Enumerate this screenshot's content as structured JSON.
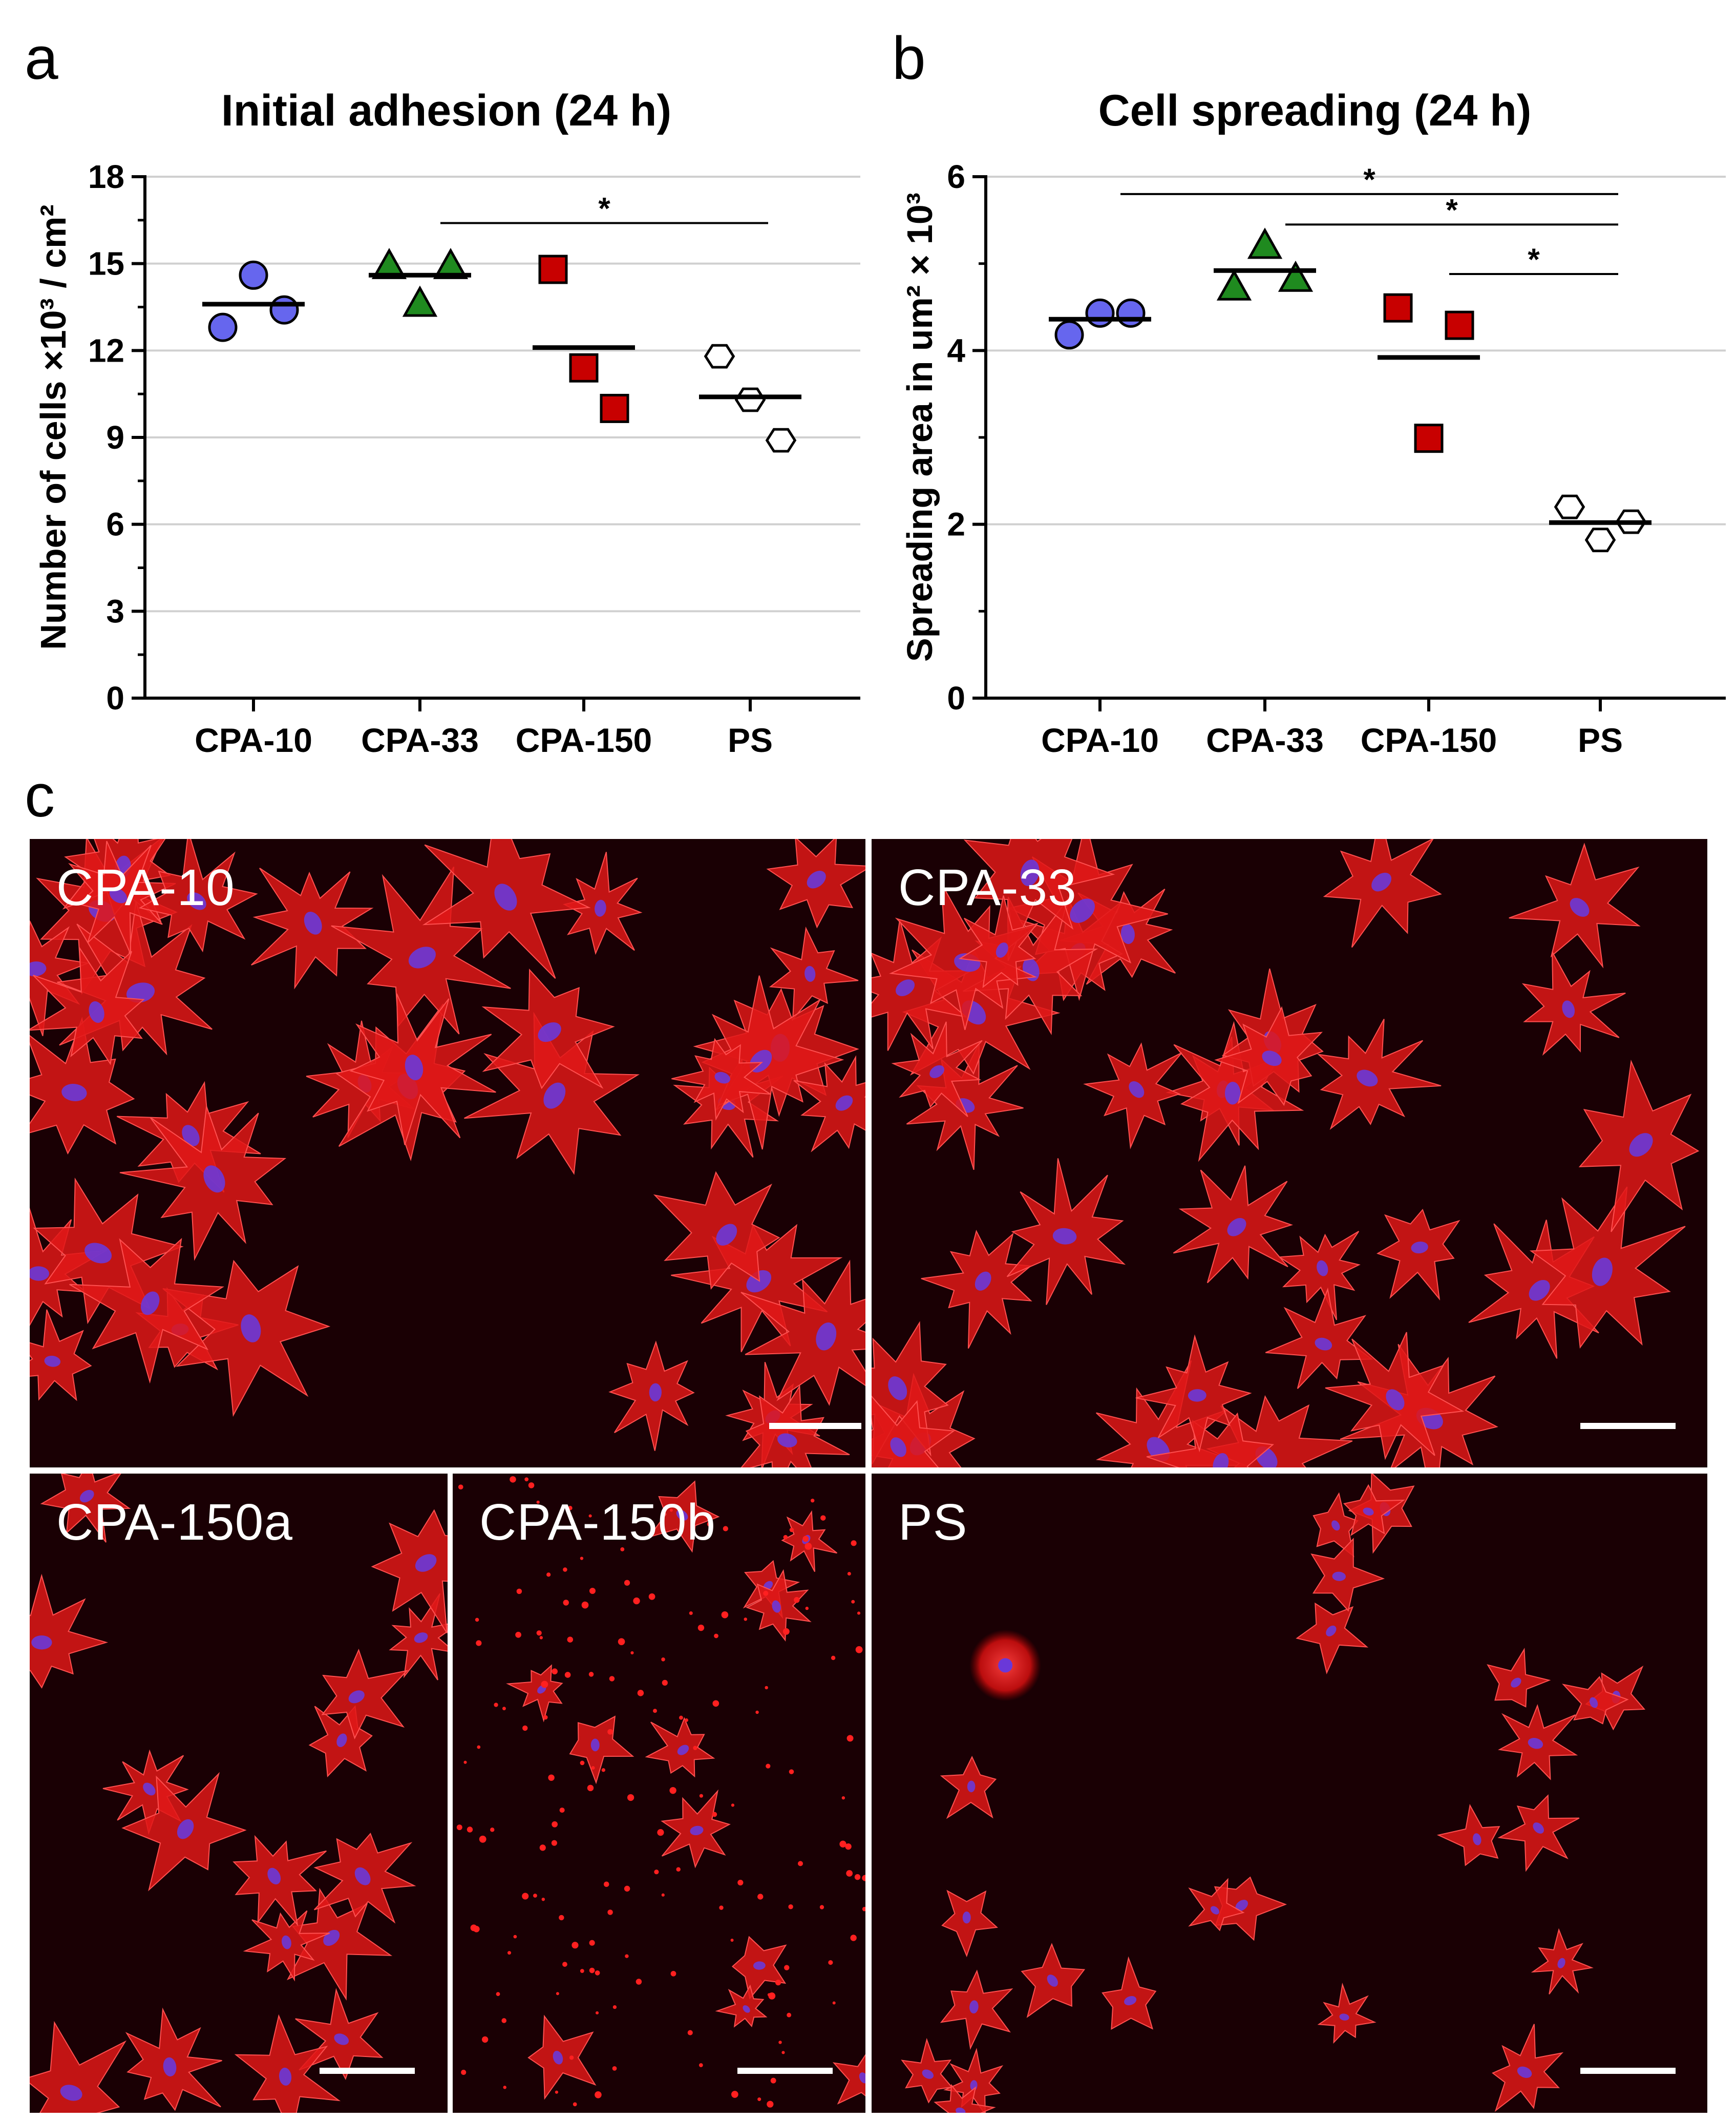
{
  "panel_letters": {
    "a": "a",
    "b": "b",
    "c": "c"
  },
  "colors": {
    "CPA-10": "#6666ee",
    "CPA-33": "#1f8a1f",
    "CPA-150": "#c80000",
    "PS": "#ffffff",
    "grid": "#d0d0d0",
    "actin": "#e01818",
    "nucleus": "#6a38d8",
    "background": "#1a0004"
  },
  "chart_data": [
    {
      "type": "scatter",
      "title": "Initial adhesion (24 h)",
      "ylabel": "Number of cells ×10³ / cm²",
      "xlabel": "",
      "categories": [
        "CPA-10",
        "CPA-33",
        "CPA-150",
        "PS"
      ],
      "ylim": [
        0,
        18
      ],
      "yticks": [
        "0",
        "3",
        "6",
        "9",
        "12",
        "15",
        "18"
      ],
      "grid": true,
      "series": [
        {
          "name": "CPA-10",
          "marker": "circle",
          "values": [
            12.8,
            14.6,
            13.4
          ],
          "mean": 13.6
        },
        {
          "name": "CPA-33",
          "marker": "triangle",
          "values": [
            14.9,
            13.6,
            14.9
          ],
          "mean": 14.6
        },
        {
          "name": "CPA-150",
          "marker": "square",
          "values": [
            14.8,
            11.4,
            10.0
          ],
          "mean": 12.1
        },
        {
          "name": "PS",
          "marker": "hexagon",
          "values": [
            11.8,
            10.3,
            8.9
          ],
          "mean": 10.4
        }
      ],
      "significance": [
        {
          "from": "CPA-33",
          "to": "PS",
          "level": 16.4,
          "label": "*"
        }
      ]
    },
    {
      "type": "scatter",
      "title": "Cell spreading (24 h)",
      "ylabel": "Spreading area in um² × 10³",
      "xlabel": "",
      "categories": [
        "CPA-10",
        "CPA-33",
        "CPA-150",
        "PS"
      ],
      "ylim": [
        0,
        6
      ],
      "yticks": [
        "0",
        "2",
        "4",
        "6"
      ],
      "grid": true,
      "series": [
        {
          "name": "CPA-10",
          "marker": "circle",
          "values": [
            4.18,
            4.43,
            4.43
          ],
          "mean": 4.36
        },
        {
          "name": "CPA-33",
          "marker": "triangle",
          "values": [
            4.72,
            5.2,
            4.82
          ],
          "mean": 4.92
        },
        {
          "name": "CPA-150",
          "marker": "square",
          "values": [
            4.49,
            2.99,
            4.29
          ],
          "mean": 3.92
        },
        {
          "name": "PS",
          "marker": "hexagon",
          "values": [
            2.2,
            1.82,
            2.03
          ],
          "mean": 2.02
        }
      ],
      "significance": [
        {
          "from": "CPA-10",
          "to": "PS",
          "level": 5.8,
          "label": "*"
        },
        {
          "from": "CPA-33",
          "to": "PS",
          "level": 5.45,
          "label": "*"
        },
        {
          "from": "CPA-150",
          "to": "PS",
          "level": 4.88,
          "label": "*"
        }
      ]
    }
  ],
  "micrographs": [
    {
      "label": "CPA-10",
      "cells": "large-spread"
    },
    {
      "label": "CPA-33",
      "cells": "large-spread"
    },
    {
      "label": "CPA-150a",
      "cells": "spread"
    },
    {
      "label": "CPA-150b",
      "cells": "sparse-dots"
    },
    {
      "label": "PS",
      "cells": "small-rounded"
    }
  ]
}
